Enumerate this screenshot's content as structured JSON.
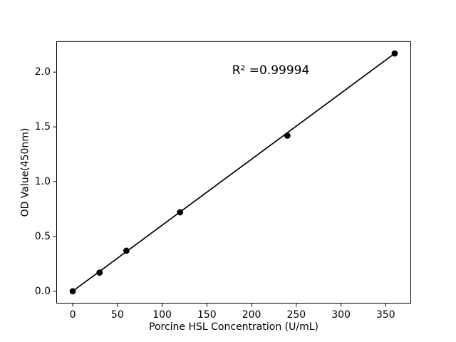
{
  "chart_data": {
    "type": "scatter",
    "title": "",
    "xlabel": "Porcine HSL Concentration (U/mL)",
    "ylabel": "OD Value(450nm)",
    "annotation": "R² =0.99994",
    "x": [
      0,
      30,
      60,
      120,
      240,
      360
    ],
    "y": [
      0.0,
      0.17,
      0.37,
      0.72,
      1.42,
      2.17
    ],
    "fit_line": {
      "from": {
        "x": 0,
        "y": 0.0
      },
      "to": {
        "x": 360,
        "y": 2.17
      }
    },
    "x_ticks": [
      "0",
      "50",
      "100",
      "150",
      "200",
      "250",
      "300",
      "350"
    ],
    "y_ticks": [
      "0.0",
      "0.5",
      "1.0",
      "1.5",
      "2.0"
    ],
    "xlim": [
      -18,
      378
    ],
    "ylim": [
      -0.109,
      2.279
    ],
    "grid": false,
    "legend": "none",
    "marker_color": "#000000",
    "line_color": "#000000",
    "frame_color": "#000000",
    "background_color": "#ffffff"
  }
}
